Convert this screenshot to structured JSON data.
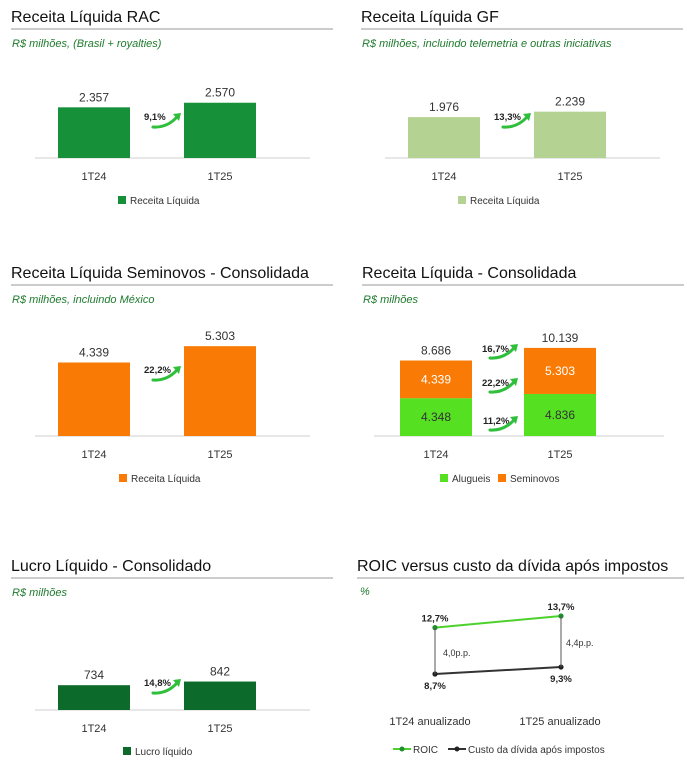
{
  "colors": {
    "dark_green": "#16913a",
    "light_green": "#b4d393",
    "orange": "#f97b05",
    "lime": "#55e022",
    "deep_green": "#0c6b2b",
    "line_green": "#4dd12c",
    "line_dark": "#333333",
    "arrow": "#2fbf3b"
  },
  "chart_data": [
    {
      "type": "bar",
      "title": "Receita Líquida RAC",
      "subtitle": "R$ milhões, (Brasil + royalties)",
      "categories": [
        "1T24",
        "1T25"
      ],
      "series": [
        {
          "name": "Receita Líquida",
          "values": [
            2357,
            2570
          ],
          "labels": [
            "2.357",
            "2.570"
          ]
        }
      ],
      "growth": "9,1%",
      "color": "dark_green"
    },
    {
      "type": "bar",
      "title": "Receita Líquida GF",
      "subtitle": "R$ milhões, incluindo telemetria e outras iniciativas",
      "categories": [
        "1T24",
        "1T25"
      ],
      "series": [
        {
          "name": "Receita Líquida",
          "values": [
            1976,
            2239
          ],
          "labels": [
            "1.976",
            "2.239"
          ]
        }
      ],
      "growth": "13,3%",
      "color": "light_green"
    },
    {
      "type": "bar",
      "title": "Receita Líquida Seminovos - Consolidada",
      "subtitle": "R$ milhões, incluindo México",
      "categories": [
        "1T24",
        "1T25"
      ],
      "series": [
        {
          "name": "Receita Líquida",
          "values": [
            4339,
            5303
          ],
          "labels": [
            "4.339",
            "5.303"
          ]
        }
      ],
      "growth": "22,2%",
      "color": "orange"
    },
    {
      "type": "bar",
      "stacked": true,
      "title": "Receita Líquida - Consolidada",
      "subtitle": "R$ milhões",
      "categories": [
        "1T24",
        "1T25"
      ],
      "series": [
        {
          "name": "Alugueis",
          "values": [
            4348,
            4836
          ],
          "labels": [
            "4.348",
            "4.836"
          ],
          "growth": "11,2%"
        },
        {
          "name": "Seminovos",
          "values": [
            4339,
            5303
          ],
          "labels": [
            "4.339",
            "5.303"
          ],
          "growth": "22,2%"
        }
      ],
      "totals": {
        "values": [
          8686,
          10139
        ],
        "labels": [
          "8.686",
          "10.139"
        ],
        "growth": "16,7%"
      }
    },
    {
      "type": "bar",
      "title": "Lucro Líquido - Consolidado",
      "subtitle": "R$ milhões",
      "categories": [
        "1T24",
        "1T25"
      ],
      "series": [
        {
          "name": "Lucro líquido",
          "values": [
            734,
            842
          ],
          "labels": [
            "734",
            "842"
          ]
        }
      ],
      "growth": "14,8%",
      "color": "deep_green"
    },
    {
      "type": "line",
      "title": "ROIC versus custo da dívida após impostos",
      "subtitle": "%",
      "categories": [
        "1T24 anualizado",
        "1T25 anualizado"
      ],
      "series": [
        {
          "name": "ROIC",
          "values": [
            12.7,
            13.7
          ],
          "labels": [
            "12,7%",
            "13,7%"
          ]
        },
        {
          "name": "Custo da dívida após impostos",
          "values": [
            8.7,
            9.3
          ],
          "labels": [
            "8,7%",
            "9,3%"
          ]
        }
      ],
      "spreads": [
        "4,0p.p.",
        "4,4p.p."
      ]
    }
  ]
}
